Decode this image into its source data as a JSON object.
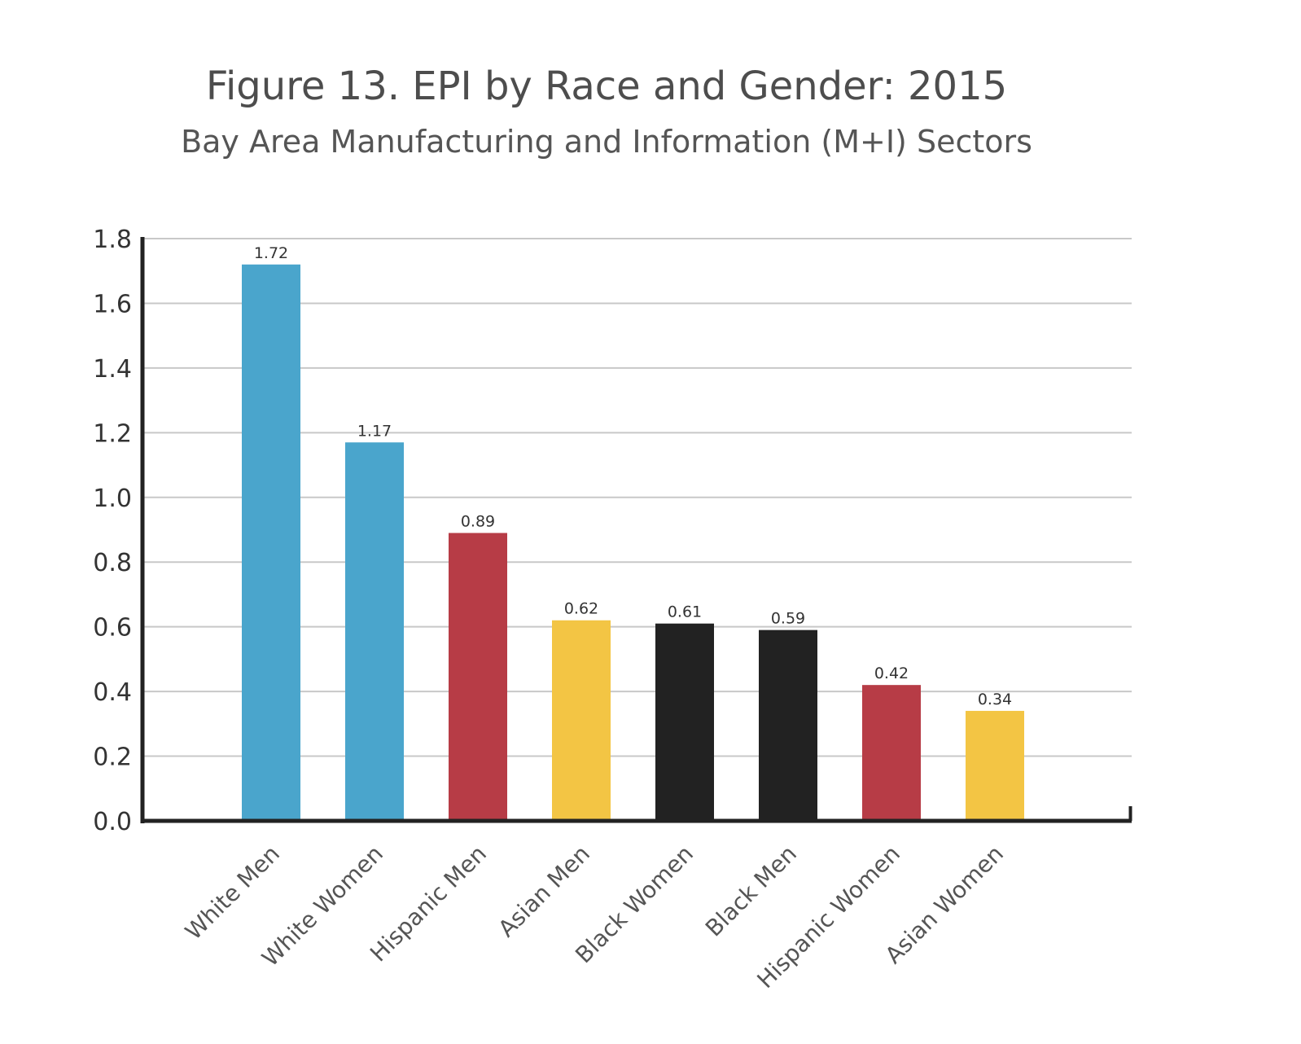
{
  "chart_data": {
    "type": "bar",
    "title": "Figure 13. EPI by Race and Gender: 2015",
    "subtitle": "Bay Area Manufacturing and Information (M+I) Sectors",
    "xlabel": "",
    "ylabel": "",
    "ylim": [
      0,
      1.8
    ],
    "yticks": [
      "0.0",
      "0.2",
      "0.4",
      "0.6",
      "0.8",
      "1.0",
      "1.2",
      "1.4",
      "1.6",
      "1.8"
    ],
    "grid": true,
    "categories": [
      "White Men",
      "White Women",
      "Hispanic Men",
      "Asian Men",
      "Black Women",
      "Black Men",
      "Hispanic Women",
      "Asian Women"
    ],
    "values": [
      1.72,
      1.17,
      0.89,
      0.62,
      0.61,
      0.59,
      0.42,
      0.34
    ],
    "value_labels": [
      "1.72",
      "1.17",
      "0.89",
      "0.62",
      "0.61",
      "0.59",
      "0.42",
      "0.34"
    ],
    "colors": [
      "#4aa5cc",
      "#4aa5cc",
      "#b73c46",
      "#f3c544",
      "#222222",
      "#222222",
      "#b73c46",
      "#f3c544"
    ],
    "grid_color": "#c8c8c8",
    "axis_color": "#222222"
  }
}
